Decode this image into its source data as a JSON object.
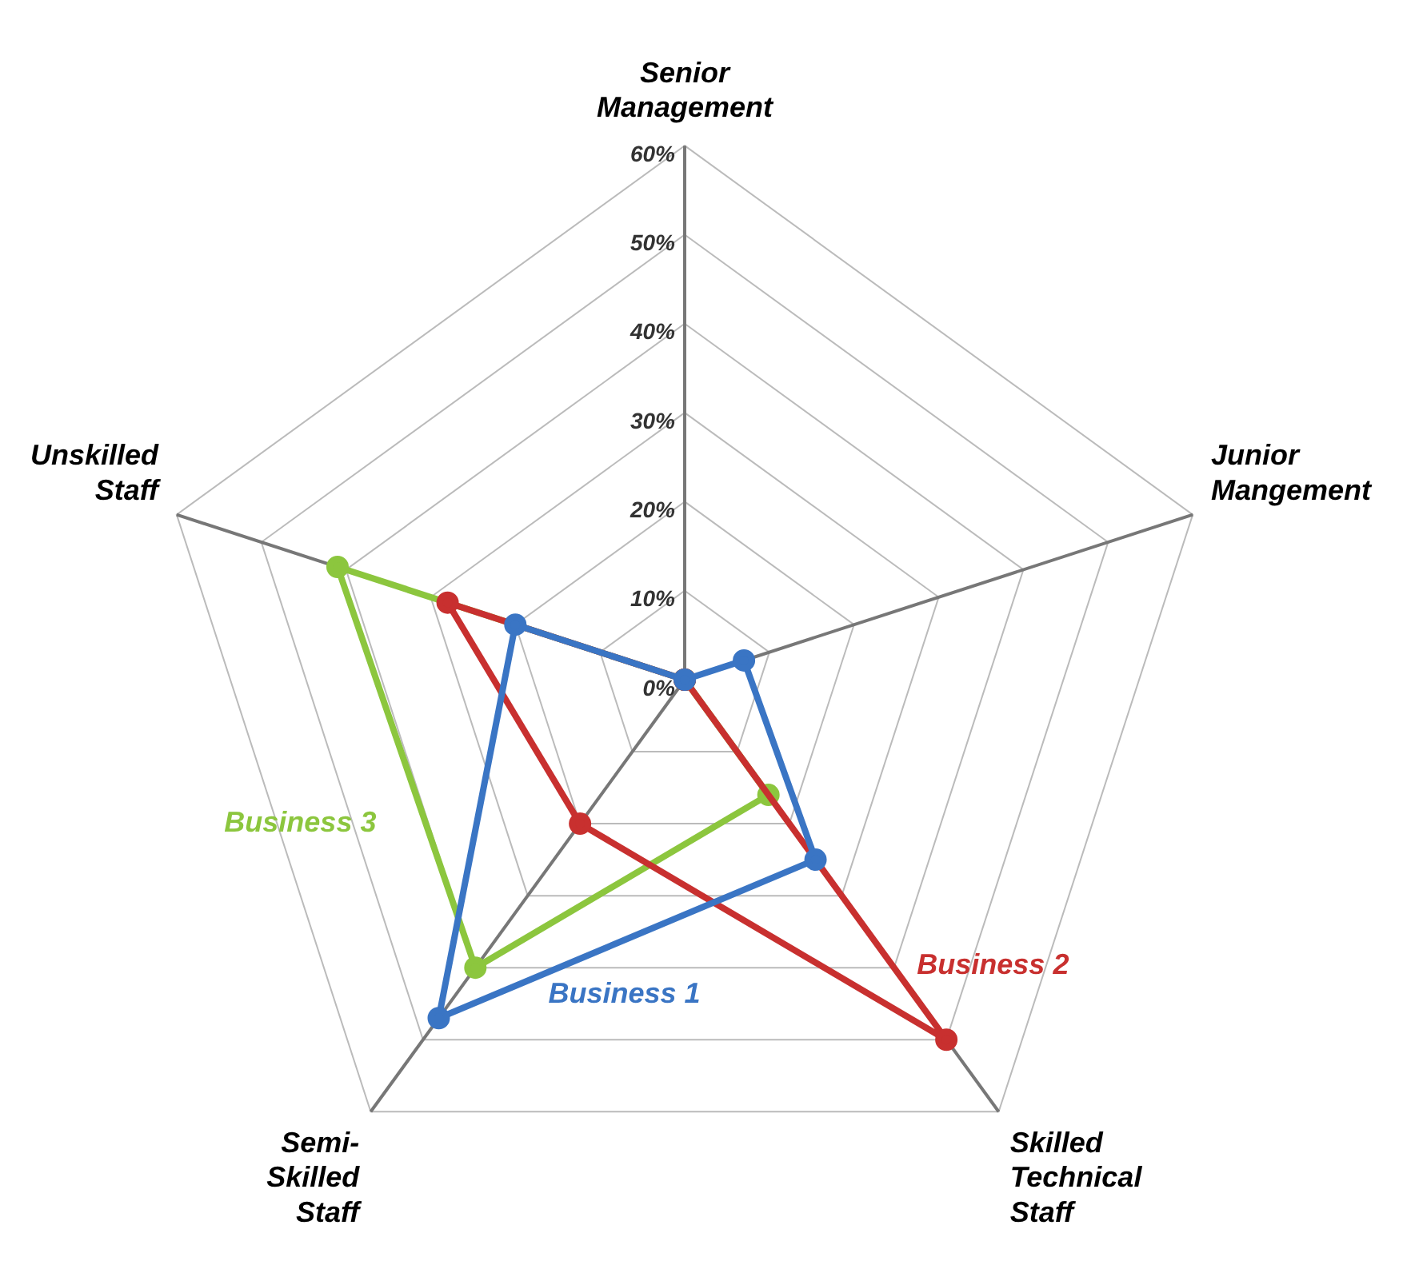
{
  "chart_data": {
    "type": "radar",
    "categories": [
      "Senior Management",
      "Junior Mangement",
      "Skilled Technical Staff",
      "Semi-Skilled Staff",
      "Unskilled Staff"
    ],
    "series": [
      {
        "name": "Business 1",
        "color": "#3a75c4",
        "values": [
          0,
          7,
          25,
          47,
          20
        ]
      },
      {
        "name": "Business 2",
        "color": "#c8302f",
        "values": [
          0,
          0,
          50,
          20,
          28
        ]
      },
      {
        "name": "Business 3",
        "color": "#8cc63e",
        "values": [
          0,
          0,
          16,
          40,
          41
        ]
      }
    ],
    "ylim": [
      0,
      60
    ],
    "yticks": [
      {
        "value": 0,
        "label": "0%"
      },
      {
        "value": 10,
        "label": "10%"
      },
      {
        "value": 20,
        "label": "20%"
      },
      {
        "value": 30,
        "label": "30%"
      },
      {
        "value": 40,
        "label": "40%"
      },
      {
        "value": 50,
        "label": "50%"
      },
      {
        "value": 60,
        "label": "60%"
      }
    ],
    "grid": true,
    "legend": false,
    "marker": "circle",
    "line_style": "solid"
  }
}
